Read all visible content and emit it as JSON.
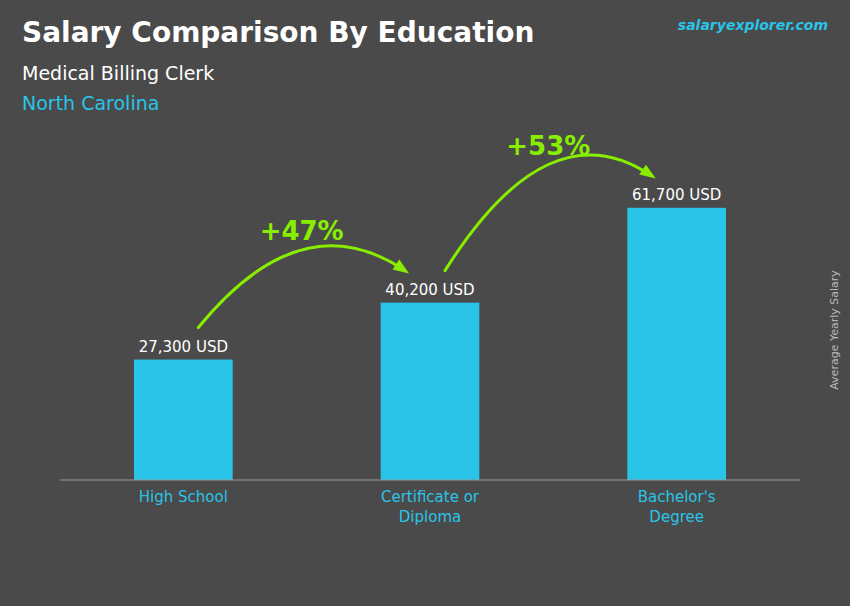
{
  "chart_data": {
    "type": "bar",
    "title": "Salary Comparison By Education",
    "subtitle": [
      "Medical Billing Clerk",
      "North Carolina"
    ],
    "y_label": "Average Yearly Salary",
    "categories": [
      "High School",
      "Certificate or\nDiploma",
      "Bachelor's\nDegree"
    ],
    "values": [
      27300,
      40200,
      61700
    ],
    "value_labels": [
      "27,300 USD",
      "40,200 USD",
      "61,700 USD"
    ],
    "data_labels": true,
    "annotations": [
      "+47%",
      "+53%",
      "salaryexplorer.com"
    ],
    "color": "#29c4e8",
    "ylim": [
      0,
      68000
    ],
    "tick_labels": false,
    "grid": false
  }
}
